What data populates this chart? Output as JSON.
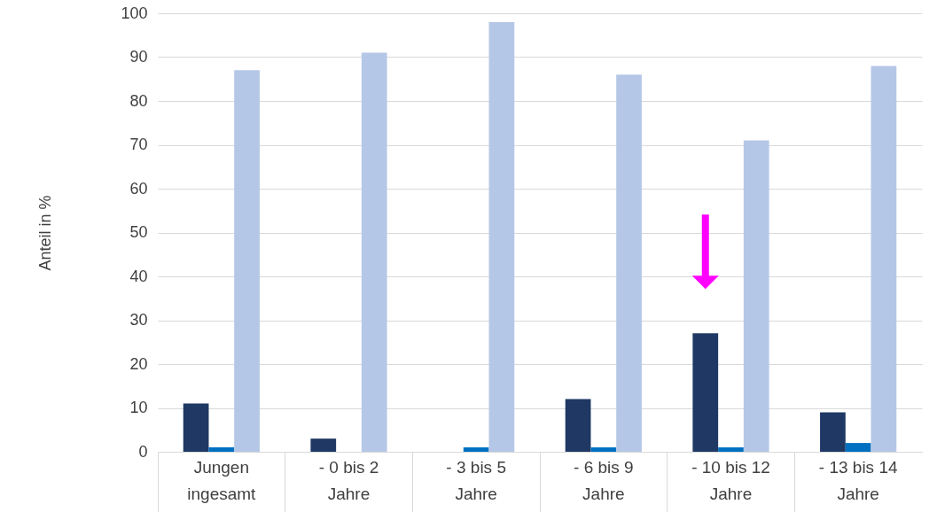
{
  "chart_data": {
    "type": "bar",
    "ylabel": "Anteil in %",
    "categories": [
      "Jungen ingesamt",
      "- 0 bis 2 Jahre",
      "- 3 bis 5 Jahre",
      "- 6 bis 9 Jahre",
      "- 10 bis 12 Jahre",
      "- 13 bis 14 Jahre"
    ],
    "series": [
      {
        "color": "#1f3864",
        "values": [
          11,
          3,
          0,
          12,
          27,
          9
        ]
      },
      {
        "color": "#0070c0",
        "values": [
          1,
          0,
          1,
          1,
          1,
          2
        ]
      },
      {
        "color": "#b4c7e7",
        "values": [
          87,
          91,
          98,
          86,
          71,
          88
        ]
      }
    ],
    "ylim": [
      0,
      100
    ],
    "yticks": [
      0,
      10,
      20,
      30,
      40,
      50,
      60,
      70,
      80,
      90,
      100
    ],
    "grid": "y"
  }
}
